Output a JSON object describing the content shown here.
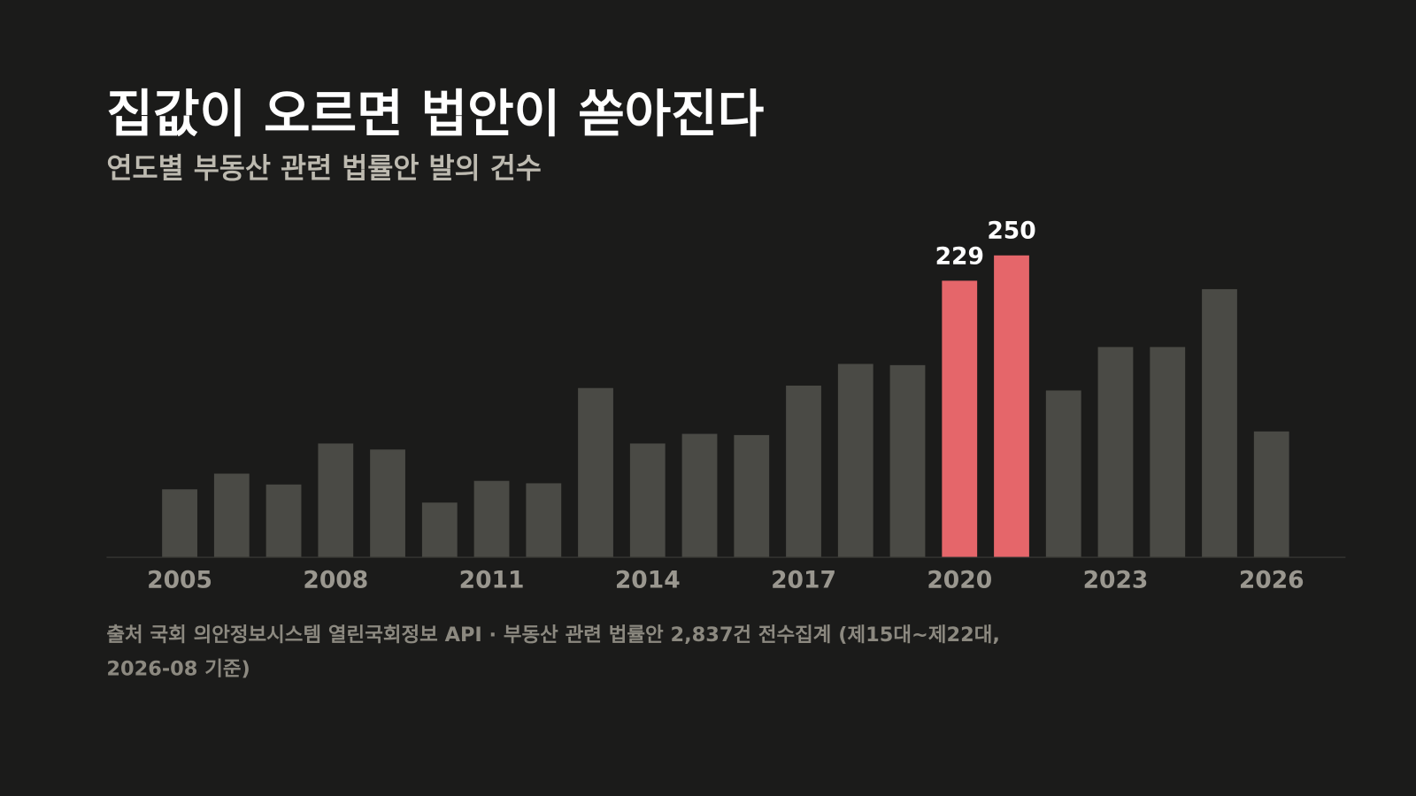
{
  "chart_data": {
    "type": "bar",
    "title": "집값이 오르면 법안이 쏟아진다",
    "subtitle": "연도별 부동산 관련 법률안 발의 건수",
    "categories": [
      "2005",
      null,
      null,
      "2008",
      null,
      null,
      "2011",
      null,
      null,
      "2014",
      null,
      null,
      "2017",
      null,
      null,
      "2020",
      null,
      null,
      "2023",
      null,
      null,
      "2026"
    ],
    "values": [
      56,
      69,
      60,
      94,
      89,
      45,
      63,
      61,
      140,
      94,
      102,
      101,
      142,
      160,
      159,
      229,
      250,
      138,
      174,
      174,
      222,
      104
    ],
    "value_labels": [
      null,
      null,
      null,
      null,
      null,
      null,
      null,
      null,
      null,
      null,
      null,
      null,
      null,
      null,
      null,
      "229",
      "250",
      null,
      null,
      null,
      null,
      null
    ],
    "colors": [
      "#4a4a45",
      "#4a4a45",
      "#4a4a45",
      "#4a4a45",
      "#4a4a45",
      "#4a4a45",
      "#4a4a45",
      "#4a4a45",
      "#4a4a45",
      "#4a4a45",
      "#4a4a45",
      "#4a4a45",
      "#4a4a45",
      "#4a4a45",
      "#4a4a45",
      "#e5666a",
      "#e5666a",
      "#4a4a45",
      "#4a4a45",
      "#4a4a45",
      "#4a4a45",
      "#4a4a45"
    ],
    "ylim": [
      0,
      250
    ],
    "grid": false,
    "source": [
      "출처 국회 의안정보시스템 열린국회정보 API · 부동산 관련 법률안 2,837건 전수집계 (제15대~제22대,",
      "2026-08 기준)"
    ]
  }
}
